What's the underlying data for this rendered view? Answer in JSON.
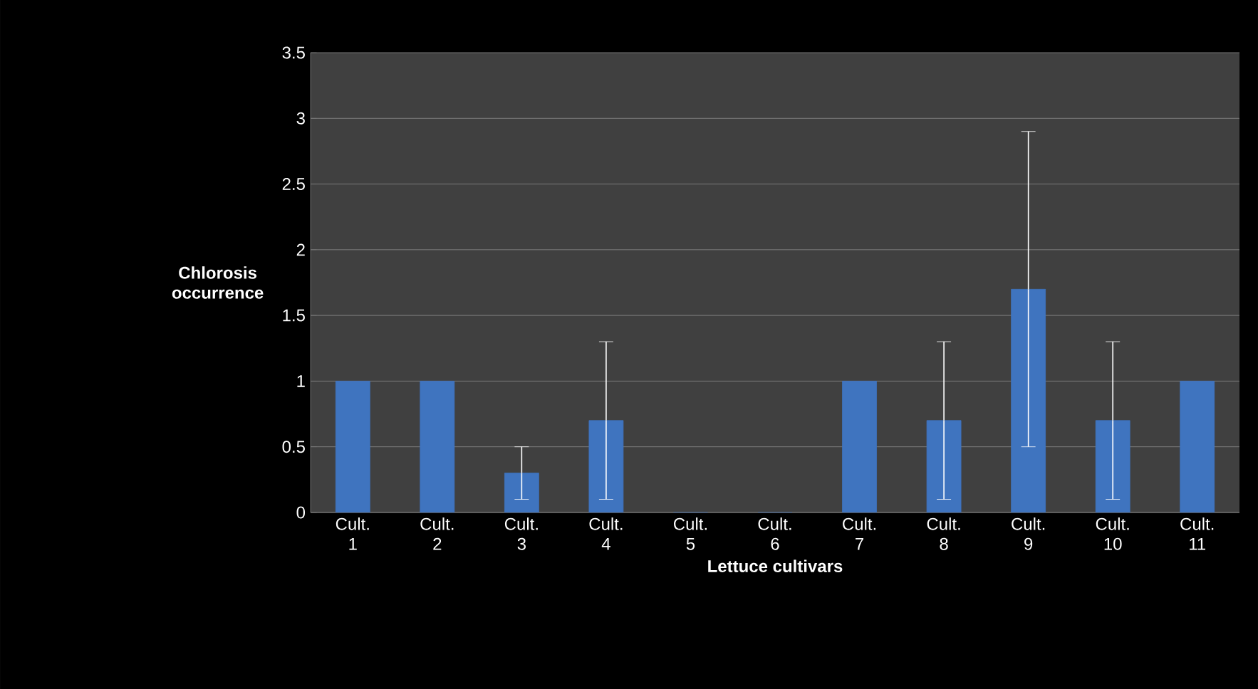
{
  "chart_data": {
    "type": "bar",
    "xlabel": "Lettuce cultivars",
    "ylabel": "Chlorosis occurrence",
    "categories": [
      "Cult. 1",
      "Cult. 2",
      "Cult. 3",
      "Cult. 4",
      "Cult. 5",
      "Cult. 6",
      "Cult. 7",
      "Cult. 8",
      "Cult. 9",
      "Cult. 10",
      "Cult. 11"
    ],
    "values": [
      1,
      1,
      0.3,
      0.7,
      0,
      0,
      1,
      0.7,
      1.7,
      0.7,
      1
    ],
    "errors": [
      null,
      null,
      0.2,
      0.6,
      null,
      null,
      null,
      0.6,
      1.2,
      0.6,
      null
    ],
    "color": "#3f74bf",
    "ylim": [
      0,
      3.5
    ],
    "yticks": [
      0,
      0.5,
      1,
      1.5,
      2,
      2.5,
      3,
      3.5
    ],
    "grid": "y"
  }
}
